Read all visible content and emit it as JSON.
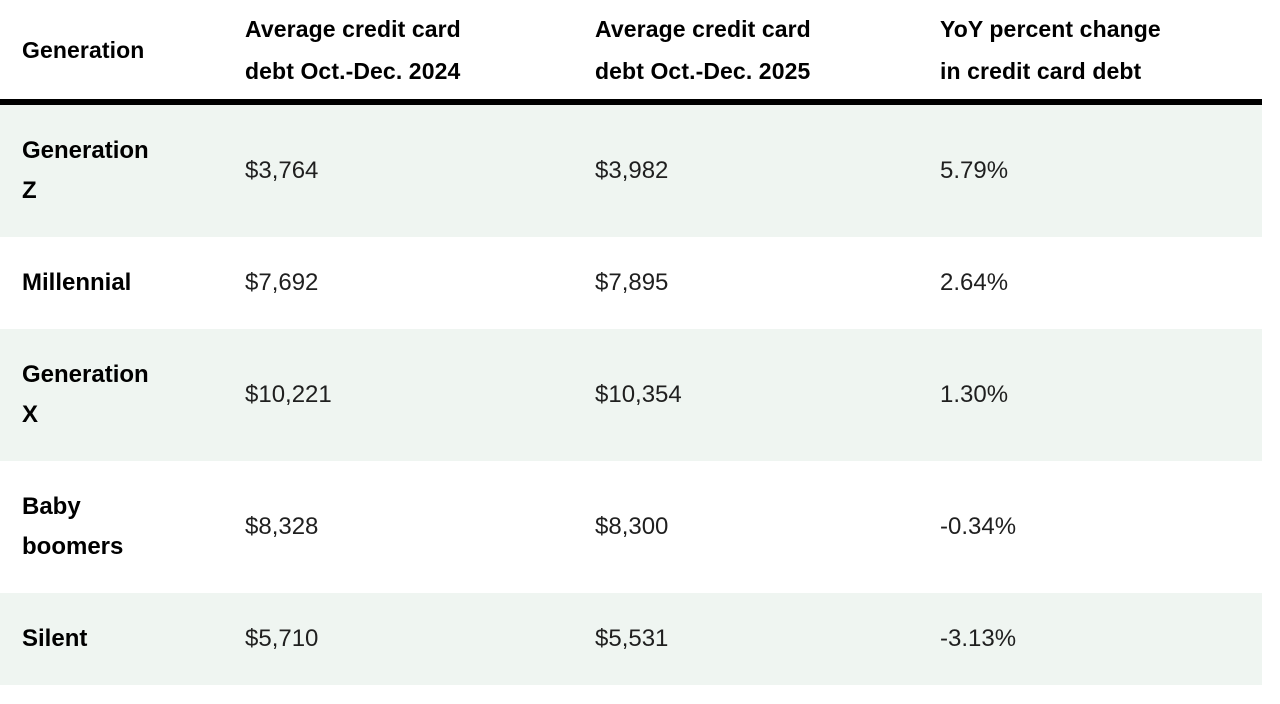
{
  "colors": {
    "row_stripe": "#eff5f1",
    "row_plain": "#ffffff",
    "header_rule": "#000000",
    "header_text": "#000000",
    "value_text": "#1f1f1f"
  },
  "table": {
    "columns": [
      "Generation",
      "Average credit card debt Oct.-Dec. 2024",
      "Average credit card debt Oct.-Dec. 2025",
      "YoY percent change in credit card debt"
    ],
    "rows": [
      {
        "generation": "Generation Z",
        "debt_q4_2024": "$3,764",
        "debt_q4_2025": "$3,982",
        "yoy_change": "5.79%"
      },
      {
        "generation": "Millennial",
        "debt_q4_2024": "$7,692",
        "debt_q4_2025": "$7,895",
        "yoy_change": "2.64%"
      },
      {
        "generation": "Generation X",
        "debt_q4_2024": "$10,221",
        "debt_q4_2025": "$10,354",
        "yoy_change": "1.30%"
      },
      {
        "generation": "Baby boomers",
        "debt_q4_2024": "$8,328",
        "debt_q4_2025": "$8,300",
        "yoy_change": "-0.34%"
      },
      {
        "generation": "Silent",
        "debt_q4_2024": "$5,710",
        "debt_q4_2025": "$5,531",
        "yoy_change": "-3.13%"
      }
    ]
  },
  "chart_data": {
    "type": "table",
    "categories": [
      "Generation Z",
      "Millennial",
      "Generation X",
      "Baby boomers",
      "Silent"
    ],
    "series": [
      {
        "name": "Average credit card debt Oct.-Dec. 2024",
        "values": [
          3764,
          7692,
          10221,
          8328,
          5710
        ]
      },
      {
        "name": "Average credit card debt Oct.-Dec. 2025",
        "values": [
          3982,
          7895,
          10354,
          8300,
          5531
        ]
      },
      {
        "name": "YoY percent change in credit card debt",
        "values": [
          5.79,
          2.64,
          1.3,
          -0.34,
          -3.13
        ]
      }
    ],
    "title": "",
    "xlabel": "",
    "ylabel": "",
    "legend_position": "none",
    "grid": false
  }
}
